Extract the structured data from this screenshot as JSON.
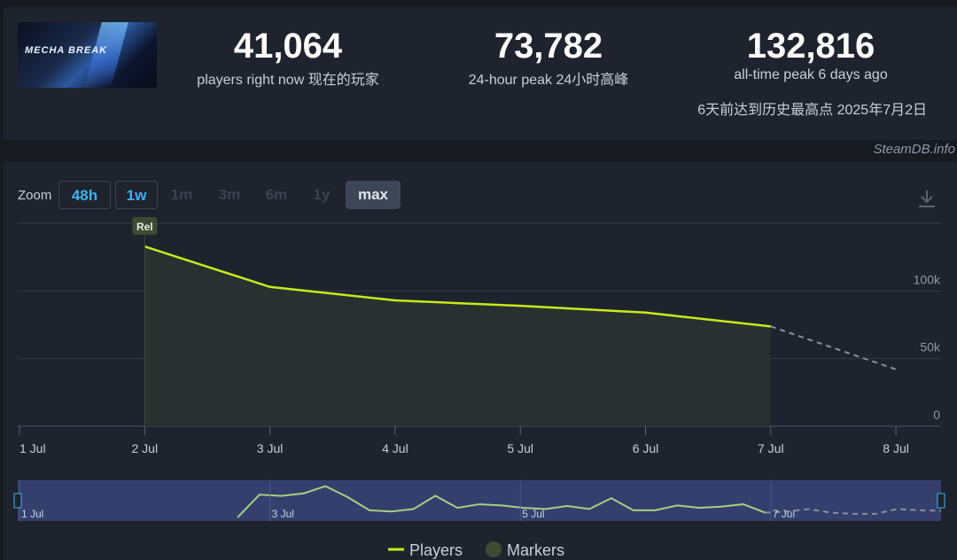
{
  "app": {
    "capsule_alt": "MECHA BREAK",
    "credit": "SteamDB.info"
  },
  "stats": {
    "current": {
      "value": "41,064",
      "label": "players right now  现在的玩家"
    },
    "peak24": {
      "value": "73,782",
      "label": "24-hour peak  24小时高峰"
    },
    "alltime": {
      "value": "132,816",
      "label": "all-time peak 6 days ago",
      "extra": "6天前达到历史最高点 2025年7月2日"
    }
  },
  "zoom": {
    "label": "Zoom",
    "buttons": [
      {
        "label": "48h",
        "state": "active"
      },
      {
        "label": "1w",
        "state": "active"
      },
      {
        "label": "1m",
        "state": "disabled"
      },
      {
        "label": "3m",
        "state": "disabled"
      },
      {
        "label": "6m",
        "state": "disabled"
      },
      {
        "label": "1y",
        "state": "disabled"
      },
      {
        "label": "max",
        "state": "selected"
      }
    ]
  },
  "icons": {
    "download": "download-icon"
  },
  "colors": {
    "players": "#c6ea1b",
    "markers": "#3f4a33",
    "grid": "#323a48",
    "navigator_bg": "#343f6e",
    "navigator_line": "#a7cf82"
  },
  "chart_data": {
    "type": "line",
    "x_ticks": [
      "1 Jul",
      "2 Jul",
      "3 Jul",
      "4 Jul",
      "5 Jul",
      "6 Jul",
      "7 Jul",
      "8 Jul"
    ],
    "y_ticks": [
      "0",
      "50k",
      "100k"
    ],
    "ylim": [
      0,
      150000
    ],
    "xlim": [
      "1 Jul",
      "8 Jul"
    ],
    "grid": true,
    "legend": [
      "Players",
      "Markers"
    ],
    "legend_position": "bottom",
    "series": [
      {
        "name": "Players",
        "points": [
          {
            "x": "2 Jul",
            "y": 132816
          },
          {
            "x": "3 Jul",
            "y": 103000
          },
          {
            "x": "4 Jul",
            "y": 93000
          },
          {
            "x": "5 Jul",
            "y": 89000
          },
          {
            "x": "6 Jul",
            "y": 84000
          },
          {
            "x": "7 Jul",
            "y": 73782
          }
        ],
        "projection": [
          {
            "x": "7 Jul",
            "y": 73782
          },
          {
            "x": "8 Jul",
            "y": 42000
          }
        ]
      }
    ],
    "markers": [
      {
        "x": "2 Jul",
        "label": "Rel"
      }
    ],
    "navigator": {
      "x_labels": [
        "1 Jul",
        "3 Jul",
        "5 Jul",
        "7 Jul"
      ],
      "values": [
        0,
        0,
        0,
        0,
        0,
        0,
        0,
        0,
        0,
        0,
        0,
        95,
        90,
        100,
        130,
        85,
        30,
        25,
        35,
        90,
        40,
        55,
        50,
        40,
        35,
        48,
        35,
        80,
        30,
        30,
        50,
        40,
        45,
        55,
        20,
        25,
        35,
        20,
        15,
        15,
        35,
        30,
        28
      ]
    }
  }
}
